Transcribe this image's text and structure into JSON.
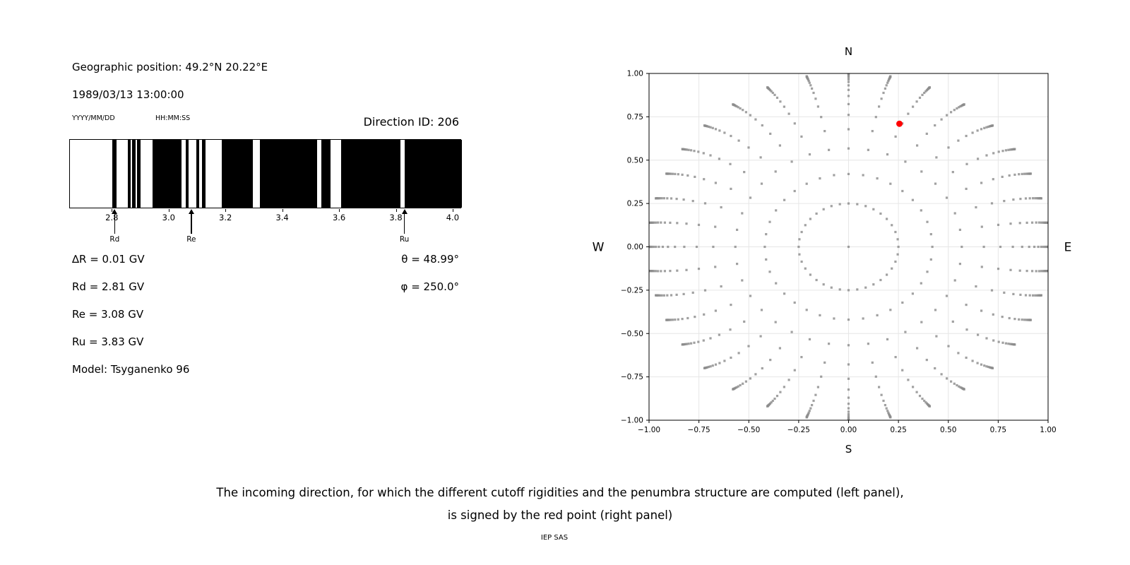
{
  "header": {
    "position": "Geographic position: 49.2°N 20.22°E",
    "datetime": "1989/03/13 13:00:00",
    "date_format": "YYYY/MM/DD",
    "time_format": "HH:MM:SS",
    "direction_id": "Direction ID: 206"
  },
  "values": {
    "items": [
      "∆R = 0.01 GV",
      "Rd = 2.81 GV",
      "Re = 3.08 GV",
      "Ru = 3.83 GV",
      "Model: Tsyganenko 96"
    ],
    "angles": [
      "θ = 48.99°",
      "φ = 250.0°"
    ]
  },
  "caption": {
    "line1": "The incoming direction, for which the different cutoff rigidities and the penumbra structure are computed (left panel),",
    "line2": "is signed by the red point (right panel)",
    "credit": "IEP SAS"
  },
  "chart_data": [
    {
      "type": "barcode",
      "title": "penumbra structure",
      "xlim": [
        2.65,
        4.03
      ],
      "xunit": "GV",
      "tick_labels": [
        "2.8",
        "3.0",
        "3.2",
        "3.4",
        "3.6",
        "3.8",
        "4.0"
      ],
      "ticks": [
        2.8,
        3.0,
        3.2,
        3.4,
        3.6,
        3.8,
        4.0
      ],
      "bars": [
        [
          2.8,
          2.814
        ],
        [
          2.853,
          2.864
        ],
        [
          2.868,
          2.881
        ],
        [
          2.887,
          2.898
        ],
        [
          2.94,
          3.042
        ],
        [
          3.057,
          3.068
        ],
        [
          3.094,
          3.104
        ],
        [
          3.116,
          3.127
        ],
        [
          3.185,
          3.294
        ],
        [
          3.318,
          3.52
        ],
        [
          3.535,
          3.567
        ],
        [
          3.604,
          3.813
        ],
        [
          3.829,
          4.03
        ]
      ],
      "arrows": [
        {
          "label": "Rd",
          "value": 2.81
        },
        {
          "label": "Re",
          "value": 3.08
        },
        {
          "label": "Ru",
          "value": 3.83
        }
      ],
      "bar_color": "#000000",
      "background": "#ffffff"
    },
    {
      "type": "scatter",
      "title_top": "N",
      "label_bottom": "S",
      "label_left": "W",
      "label_right": "E",
      "xlim": [
        -1.0,
        1.0
      ],
      "ylim": [
        -1.0,
        1.0
      ],
      "ticks": [
        -1.0,
        -0.75,
        -0.5,
        -0.25,
        0.0,
        0.25,
        0.5,
        0.75,
        1.0
      ],
      "grid": true,
      "dot_color": "#8c8c8c",
      "grid_color": "#e6e6e6",
      "red_point": {
        "x": 0.255,
        "y": 0.71,
        "color": "#ff0000"
      },
      "pattern": {
        "n_spokes": 36,
        "azimuth_step_deg": 10,
        "center_dot": [
          0,
          0
        ],
        "ring_radius": 0.25,
        "spoke_r_start": 0.42,
        "spoke_r_limit": 1.01,
        "spoke_r_coeff": 0.59,
        "spoke_r_ratio": 0.75,
        "dots_per_spoke": 18,
        "curl_deg": 6
      }
    }
  ]
}
